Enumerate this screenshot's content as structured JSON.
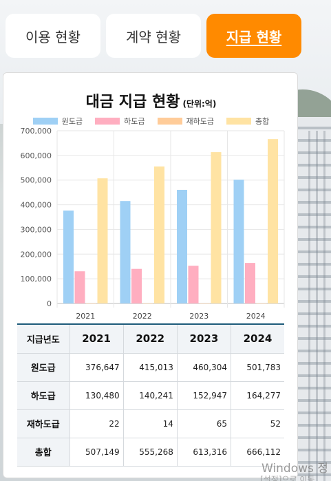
{
  "tabs": [
    {
      "label": "이용 현황"
    },
    {
      "label": "계약 현황"
    },
    {
      "label": "지급 현황"
    }
  ],
  "card": {
    "title": "대금 지급 현황",
    "unit": "(단위:억)"
  },
  "colors": {
    "accent": "#ff8a00",
    "series": [
      "#9fd0f5",
      "#ffaec0",
      "#ffcc99",
      "#ffe3a3"
    ]
  },
  "chart_data": {
    "type": "bar",
    "categories": [
      "2021",
      "2022",
      "2023",
      "2024"
    ],
    "series": [
      {
        "name": "원도급",
        "values": [
          376647,
          415013,
          460304,
          501783
        ]
      },
      {
        "name": "하도급",
        "values": [
          130480,
          140241,
          152947,
          164277
        ]
      },
      {
        "name": "재하도급",
        "values": [
          22,
          14,
          65,
          52
        ]
      },
      {
        "name": "총합",
        "values": [
          507149,
          555268,
          613316,
          666112
        ]
      }
    ],
    "yticks": [
      "0",
      "100,000",
      "200,000",
      "300,000",
      "400,000",
      "500,000",
      "600,000",
      "700,000"
    ],
    "ylim": [
      0,
      700000
    ],
    "legend": "top",
    "grid": true
  },
  "table": {
    "corner": "지급년도",
    "years": [
      "2021",
      "2022",
      "2023",
      "2024"
    ],
    "rows": [
      {
        "label": "원도급",
        "values": [
          "376,647",
          "415,013",
          "460,304",
          "501,783"
        ]
      },
      {
        "label": "하도급",
        "values": [
          "130,480",
          "140,241",
          "152,947",
          "164,277"
        ]
      },
      {
        "label": "재하도급",
        "values": [
          "22",
          "14",
          "65",
          "52"
        ]
      },
      {
        "label": "총합",
        "values": [
          "507,149",
          "555,268",
          "613,316",
          "666,112"
        ]
      }
    ]
  },
  "watermark": {
    "line1": "Windows 정",
    "line2": "[설정]으로 이동"
  }
}
